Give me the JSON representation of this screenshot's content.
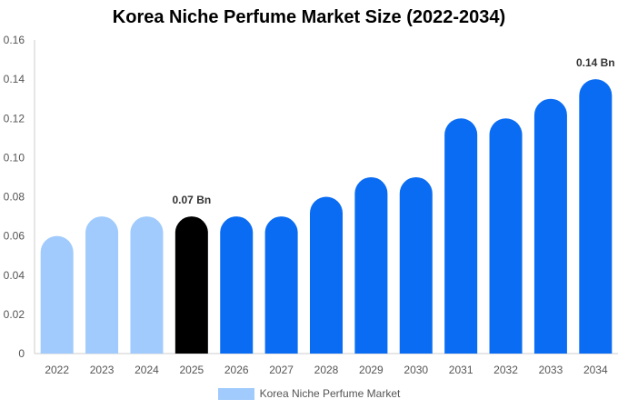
{
  "chart_data": {
    "type": "bar",
    "title": "Korea Niche Perfume Market Size (2022-2034)",
    "xlabel": "",
    "ylabel": "",
    "ylim": [
      0,
      0.16
    ],
    "yticks": [
      "0",
      "0.02",
      "0.04",
      "0.06",
      "0.08",
      "0.10",
      "0.12",
      "0.14",
      "0.16"
    ],
    "categories": [
      "2022",
      "2023",
      "2024",
      "2025",
      "2026",
      "2027",
      "2028",
      "2029",
      "2030",
      "2031",
      "2032",
      "2033",
      "2034"
    ],
    "series": [
      {
        "name": "Korea Niche Perfume Market",
        "values": [
          0.06,
          0.07,
          0.07,
          0.07,
          0.07,
          0.07,
          0.08,
          0.09,
          0.09,
          0.12,
          0.12,
          0.13,
          0.14
        ]
      }
    ],
    "bar_colors": [
      "#a0cbfc",
      "#a0cbfc",
      "#a0cbfc",
      "#000000",
      "#0a6cf2",
      "#0a6cf2",
      "#0a6cf2",
      "#0a6cf2",
      "#0a6cf2",
      "#0a6cf2",
      "#0a6cf2",
      "#0a6cf2",
      "#0a6cf2"
    ],
    "data_labels": [
      {
        "category": "2025",
        "text": "0.07 Bn"
      },
      {
        "category": "2034",
        "text": "0.14 Bn"
      }
    ],
    "grid": false,
    "legend": "bottom-center"
  }
}
